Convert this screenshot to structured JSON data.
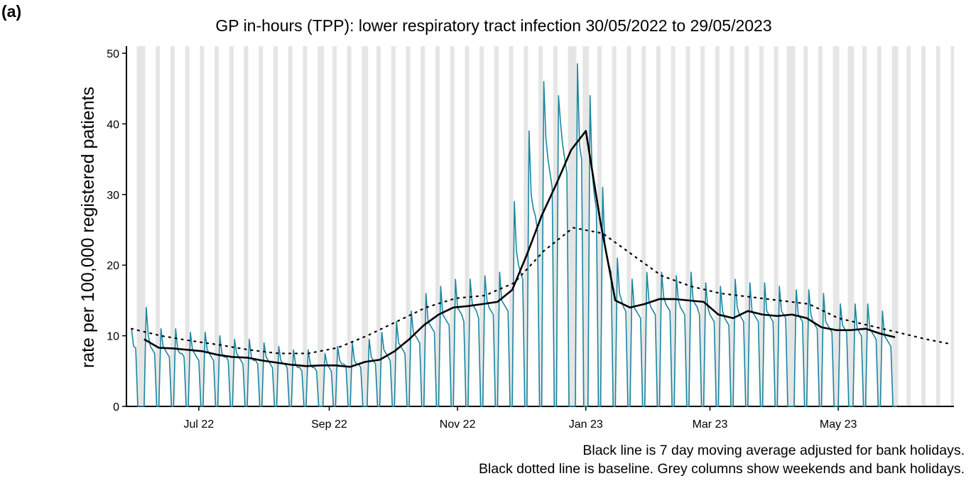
{
  "panel_label": "(a)",
  "chart_data": {
    "type": "line",
    "title": "GP in-hours (TPP): lower respiratory tract infection 30/05/2022 to 29/05/2023",
    "ylabel": "rate per 100,000 registered patients",
    "notes": [
      "Black line is 7 day moving average adjusted for bank holidays.",
      "Black dotted line is baseline. Grey columns show weekends and bank holidays."
    ],
    "xlim": [
      -2.4,
      391
    ],
    "xticks": [
      {
        "value": 32,
        "label": "Jul 22"
      },
      {
        "value": 94,
        "label": "Sep 22"
      },
      {
        "value": 155,
        "label": "Nov 22"
      },
      {
        "value": 216,
        "label": "Jan 23"
      },
      {
        "value": 275,
        "label": "Mar 23"
      },
      {
        "value": 336,
        "label": "May 23"
      }
    ],
    "ylim": [
      0,
      51
    ],
    "yticks": [
      0,
      10,
      20,
      30,
      40,
      50
    ],
    "shade_color": "#e5e5e5",
    "shaded_days": [
      3,
      4,
      5,
      6,
      12,
      13,
      19,
      20,
      26,
      27,
      33,
      34,
      40,
      41,
      47,
      48,
      54,
      55,
      61,
      62,
      68,
      69,
      75,
      76,
      82,
      83,
      89,
      90,
      91,
      96,
      97,
      103,
      104,
      110,
      111,
      112,
      117,
      118,
      124,
      125,
      131,
      132,
      138,
      139,
      145,
      146,
      152,
      153,
      159,
      160,
      166,
      167,
      173,
      174,
      180,
      181,
      187,
      188,
      194,
      195,
      201,
      202,
      208,
      209,
      210,
      211,
      215,
      216,
      217,
      222,
      223,
      229,
      230,
      236,
      237,
      243,
      244,
      250,
      251,
      257,
      258,
      264,
      265,
      271,
      272,
      278,
      279,
      285,
      286,
      292,
      293,
      299,
      300,
      306,
      307,
      312,
      313,
      314,
      315,
      320,
      321,
      327,
      328,
      334,
      335,
      336,
      341,
      342,
      343,
      348,
      349,
      355,
      356,
      362,
      363,
      364,
      369,
      370,
      376,
      377,
      383,
      384,
      390,
      391
    ],
    "series": [
      {
        "color": "#1a86a0",
        "width": 1.6,
        "dash": "none",
        "x": [
          0,
          1,
          2,
          3,
          4,
          5,
          6,
          7,
          8,
          9,
          10,
          11,
          12,
          13,
          14,
          15,
          16,
          17,
          18,
          19,
          20,
          21,
          22,
          23,
          24,
          25,
          26,
          27,
          28,
          29,
          30,
          31,
          32,
          33,
          34,
          35,
          36,
          37,
          38,
          39,
          40,
          41,
          42,
          43,
          44,
          45,
          46,
          47,
          48,
          49,
          50,
          51,
          52,
          53,
          54,
          55,
          56,
          57,
          58,
          59,
          60,
          61,
          62,
          63,
          64,
          65,
          66,
          67,
          68,
          69,
          70,
          71,
          72,
          73,
          74,
          75,
          76,
          77,
          78,
          79,
          80,
          81,
          82,
          83,
          84,
          85,
          86,
          87,
          88,
          89,
          90,
          91,
          92,
          93,
          94,
          95,
          96,
          97,
          98,
          99,
          100,
          101,
          102,
          103,
          104,
          105,
          106,
          107,
          108,
          109,
          110,
          111,
          112,
          113,
          114,
          115,
          116,
          117,
          118,
          119,
          120,
          121,
          122,
          123,
          124,
          125,
          126,
          127,
          128,
          129,
          130,
          131,
          132,
          133,
          134,
          135,
          136,
          137,
          138,
          139,
          140,
          141,
          142,
          143,
          144,
          145,
          146,
          147,
          148,
          149,
          150,
          151,
          152,
          153,
          154,
          155,
          156,
          157,
          158,
          159,
          160,
          161,
          162,
          163,
          164,
          165,
          166,
          167,
          168,
          169,
          170,
          171,
          172,
          173,
          174,
          175,
          176,
          177,
          178,
          179,
          180,
          181,
          182,
          183,
          184,
          185,
          186,
          187,
          188,
          189,
          190,
          191,
          192,
          193,
          194,
          195,
          196,
          197,
          198,
          199,
          200,
          201,
          202,
          203,
          204,
          205,
          206,
          207,
          208,
          209,
          210,
          211,
          212,
          213,
          214,
          215,
          216,
          217,
          218,
          219,
          220,
          221,
          222,
          223,
          224,
          225,
          226,
          227,
          228,
          229,
          230,
          231,
          232,
          233,
          234,
          235,
          236,
          237,
          238,
          239,
          240,
          241,
          242,
          243,
          244,
          245,
          246,
          247,
          248,
          249,
          250,
          251,
          252,
          253,
          254,
          255,
          256,
          257,
          258,
          259,
          260,
          261,
          262,
          263,
          264,
          265,
          266,
          267,
          268,
          269,
          270,
          271,
          272,
          273,
          274,
          275,
          276,
          277,
          278,
          279,
          280,
          281,
          282,
          283,
          284,
          285,
          286,
          287,
          288,
          289,
          290,
          291,
          292,
          293,
          294,
          295,
          296,
          297,
          298,
          299,
          300,
          301,
          302,
          303,
          304,
          305,
          306,
          307,
          308,
          309,
          310,
          311,
          312,
          313,
          314,
          315,
          316,
          317,
          318,
          319,
          320,
          321,
          322,
          323,
          324,
          325,
          326,
          327,
          328,
          329,
          330,
          331,
          332,
          333,
          334,
          335,
          336,
          337,
          338,
          339,
          340,
          341,
          342,
          343,
          344,
          345,
          346,
          347,
          348,
          349,
          350,
          351,
          352,
          353,
          354,
          355,
          356,
          357,
          358,
          359,
          360,
          361,
          362,
          363,
          364
        ],
        "values": [
          11,
          8.5,
          8.3,
          0,
          0,
          0,
          0,
          14,
          10,
          8.5,
          8,
          7.5,
          0,
          0,
          11,
          8.5,
          8,
          7.5,
          7,
          0,
          0,
          11,
          8,
          7.5,
          7.5,
          7,
          0,
          0,
          10.5,
          8,
          7.5,
          7,
          6.5,
          0,
          0,
          10.5,
          8,
          7.5,
          7,
          6.5,
          0,
          0,
          10,
          7.5,
          7,
          7,
          6.5,
          0,
          0,
          9.5,
          7.5,
          7,
          6.5,
          6,
          0,
          0,
          9.5,
          7,
          6.5,
          6.5,
          6,
          0,
          0,
          9,
          7,
          6.5,
          6,
          5.5,
          0,
          0,
          8.5,
          6.5,
          6,
          6,
          5.5,
          0,
          0,
          8,
          6,
          5.5,
          5.5,
          5,
          0,
          0,
          8,
          6,
          5.5,
          5.5,
          5,
          0,
          0,
          0,
          7.5,
          6,
          5.5,
          5,
          0,
          0,
          8.5,
          6.5,
          6,
          6,
          5.5,
          0,
          0,
          9,
          6.5,
          6,
          6,
          5.5,
          0,
          0,
          0,
          9.5,
          7,
          6.5,
          6,
          0,
          0,
          10.5,
          8,
          7.5,
          7,
          6.5,
          0,
          0,
          12,
          9,
          8.5,
          8,
          7.5,
          0,
          0,
          13.5,
          10.5,
          10,
          9.5,
          9,
          0,
          0,
          16,
          12,
          11.5,
          11,
          10.5,
          0,
          0,
          17,
          13,
          12.5,
          12,
          11.5,
          0,
          0,
          18,
          14,
          13.5,
          13,
          12,
          0,
          0,
          18,
          14.5,
          14,
          13.5,
          12.5,
          0,
          0,
          18.5,
          15,
          14,
          13.5,
          13,
          0,
          0,
          19,
          15,
          14.5,
          14,
          13.5,
          0,
          0,
          29,
          22,
          20,
          19,
          18,
          0,
          0,
          39,
          30,
          28,
          27,
          25,
          0,
          0,
          46,
          38,
          35,
          33,
          31,
          0,
          0,
          44,
          40,
          37,
          35,
          33,
          0,
          0,
          0,
          0,
          48.5,
          37,
          35,
          0,
          0,
          0,
          44,
          33,
          30,
          28,
          0,
          0,
          31,
          23,
          21,
          20,
          19,
          0,
          0,
          21,
          16,
          15,
          14,
          13.5,
          0,
          0,
          18,
          14,
          13.5,
          13,
          12.5,
          0,
          0,
          19,
          15,
          14,
          13.5,
          13,
          0,
          0,
          19,
          15.5,
          14.5,
          14,
          13.5,
          0,
          0,
          18.5,
          15,
          14,
          13.5,
          13,
          0,
          0,
          19,
          15,
          14.5,
          14,
          13,
          0,
          0,
          17.5,
          14,
          13,
          12.5,
          12,
          0,
          0,
          17,
          13.5,
          12.5,
          12,
          11.5,
          0,
          0,
          18,
          14,
          13,
          12.5,
          12,
          0,
          0,
          17.5,
          13.5,
          13,
          12.5,
          12,
          0,
          0,
          17.5,
          13.5,
          13,
          12.5,
          12,
          0,
          0,
          17,
          13.5,
          13,
          12.5,
          0,
          0,
          0,
          0,
          16.5,
          13,
          12.5,
          12,
          0,
          0,
          16.5,
          13,
          12,
          11.5,
          11,
          0,
          0,
          16,
          12,
          11.5,
          11,
          10.5,
          0,
          0,
          0,
          14.5,
          11.5,
          11,
          10.5,
          0,
          0,
          0,
          14.5,
          11,
          10.5,
          10,
          0,
          0,
          14.5,
          11,
          10.5,
          10,
          9.5,
          0,
          0,
          13.5,
          10,
          9.5,
          9,
          8.5,
          0,
          0,
          0
        ]
      },
      {
        "color": "#000000",
        "width": 2.6,
        "dash": "none",
        "x": [
          6,
          13,
          20,
          27,
          34,
          41,
          48,
          55,
          62,
          69,
          76,
          83,
          90,
          97,
          104,
          111,
          118,
          125,
          132,
          139,
          146,
          153,
          160,
          167,
          174,
          181,
          188,
          195,
          202,
          209,
          216,
          223,
          230,
          237,
          244,
          251,
          258,
          265,
          272,
          279,
          286,
          293,
          300,
          307,
          314,
          321,
          328,
          335,
          342,
          349,
          356,
          363
        ],
        "values": [
          9.5,
          8.3,
          8.2,
          8,
          7.8,
          7.3,
          7,
          6.9,
          6.5,
          6.2,
          5.9,
          5.7,
          5.8,
          5.8,
          5.6,
          6.3,
          6.6,
          7.8,
          9.5,
          11.5,
          13,
          14,
          14.2,
          14.5,
          14.8,
          16.5,
          21.5,
          27,
          31.5,
          36.3,
          39,
          26,
          15,
          14,
          14.5,
          15.2,
          15.2,
          15,
          14.8,
          13,
          12.5,
          13.5,
          13,
          12.8,
          13,
          12.5,
          11.2,
          10.8,
          10.8,
          11,
          10.3,
          9.8
        ]
      },
      {
        "color": "#000000",
        "width": 2.2,
        "dash": "2 7",
        "x": [
          0,
          14,
          28,
          42,
          56,
          70,
          84,
          98,
          112,
          126,
          140,
          154,
          168,
          182,
          196,
          210,
          224,
          238,
          252,
          266,
          280,
          294,
          308,
          322,
          336,
          350,
          364,
          378,
          390
        ],
        "values": [
          11,
          10,
          9.3,
          8.7,
          8,
          7.5,
          7.5,
          8.3,
          10,
          12,
          14,
          15.3,
          15.7,
          17.5,
          22,
          25.3,
          24.5,
          21.5,
          18.5,
          17,
          16,
          15.5,
          15,
          14.5,
          12.5,
          11.5,
          10.5,
          9.5,
          8.8
        ]
      }
    ]
  }
}
